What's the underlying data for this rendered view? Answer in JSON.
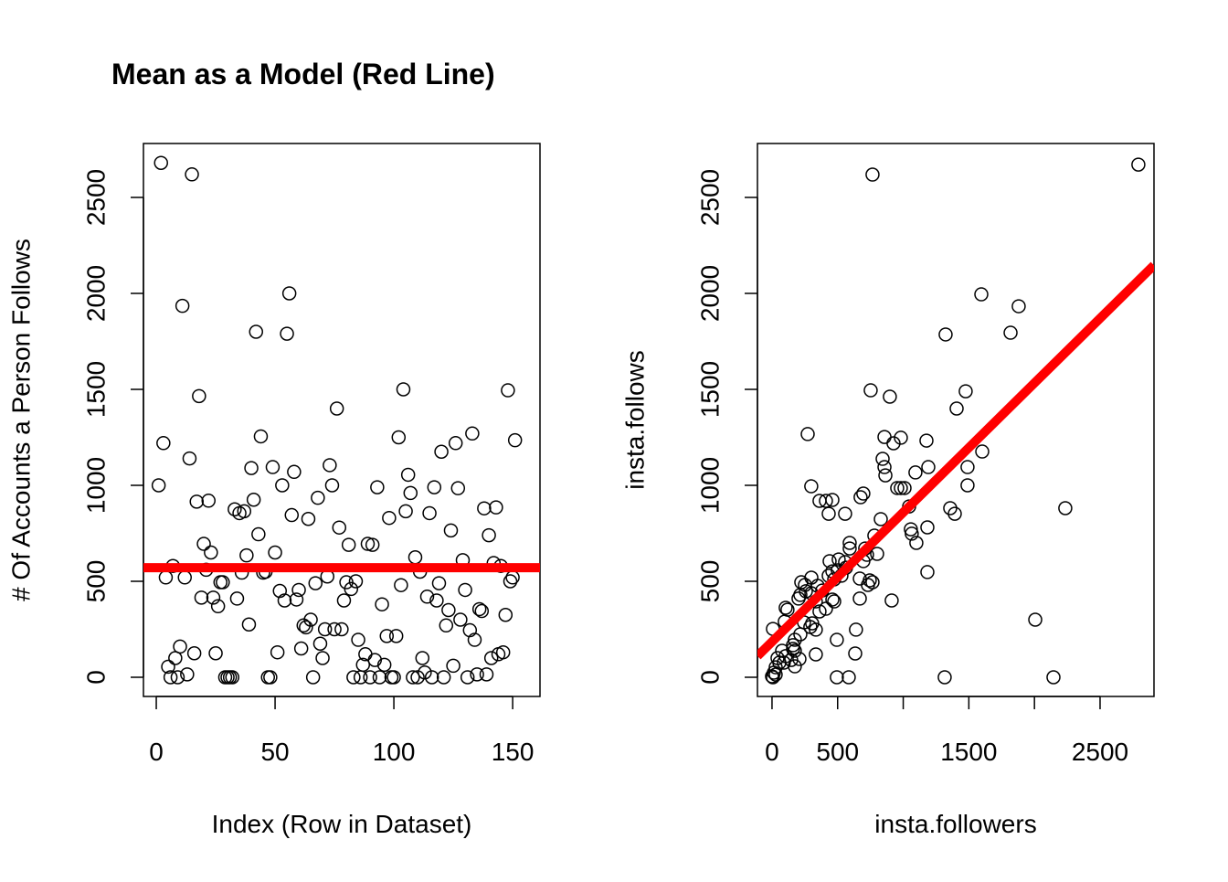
{
  "chart_data": [
    {
      "type": "scatter",
      "title": "Mean as a Model (Red Line)",
      "xlabel": "Index (Row in Dataset)",
      "ylabel": "# Of Accounts a Person Follows",
      "xlim": [
        -5.4,
        161.5
      ],
      "xticks": [
        0,
        50,
        100,
        150
      ],
      "ylim": [
        -100,
        2781
      ],
      "yticks": [
        0,
        500,
        1000,
        1500,
        2000,
        2500
      ],
      "color": "#000000",
      "values": [
        1000,
        2680,
        1220,
        520,
        55,
        0,
        580,
        100,
        0,
        160,
        1935,
        520,
        15,
        1140,
        2620,
        125,
        915,
        1465,
        415,
        695,
        560,
        920,
        650,
        415,
        125,
        370,
        495,
        495,
        0,
        0,
        0,
        0,
        875,
        410,
        855,
        545,
        865,
        635,
        275,
        1090,
        925,
        1800,
        745,
        1255,
        545,
        550,
        0,
        0,
        1095,
        650,
        130,
        450,
        1000,
        400,
        1790,
        2000,
        845,
        1070,
        405,
        455,
        150,
        270,
        260,
        825,
        300,
        0,
        490,
        935,
        175,
        100,
        250,
        525,
        1105,
        1000,
        250,
        1400,
        780,
        250,
        400,
        495,
        690,
        460,
        0,
        500,
        195,
        0,
        65,
        120,
        695,
        0,
        690,
        90,
        990,
        0,
        380,
        65,
        215,
        830,
        0,
        0,
        215,
        1250,
        480,
        1500,
        865,
        1055,
        960,
        0,
        625,
        0,
        550,
        100,
        25,
        420,
        855,
        0,
        990,
        400,
        490,
        1175,
        0,
        270,
        350,
        765,
        60,
        1220,
        985,
        300,
        610,
        455,
        0,
        245,
        1270,
        195,
        15,
        355,
        345,
        880,
        15,
        740,
        100,
        595,
        885,
        120,
        580,
        130,
        325,
        1495,
        500,
        520,
        1235
      ],
      "mean_line": {
        "value": 571,
        "color": "#ff0000"
      }
    },
    {
      "type": "scatter",
      "xlabel": "insta.followers",
      "ylabel": "insta.follows",
      "xlim": [
        -111,
        2911
      ],
      "xticks": [
        0,
        500,
        {
          "value": 1000,
          "label": null
        },
        1500,
        {
          "value": 2000,
          "label": null
        },
        2500
      ],
      "ylim": [
        -100,
        2781
      ],
      "yticks": [
        0,
        500,
        1000,
        1500,
        2000,
        2500
      ],
      "color": "#000000",
      "x": [
        2792,
        766,
        1595,
        1880,
        1323,
        1818,
        1476,
        752,
        1407,
        898,
        272,
        1177,
        1602,
        857,
        982,
        926,
        843,
        857,
        1191,
        1490,
        1093,
        864,
        299,
        954,
        982,
        1010,
        1490,
        696,
        675,
        460,
        362,
        411,
        1045,
        1358,
        2235,
        432,
        557,
        1393,
        829,
        1058,
        1184,
        1065,
        780,
        1100,
        592,
        710,
        592,
        801,
        724,
        508,
        439,
        696,
        557,
        564,
        501,
        460,
        1184,
        432,
        529,
        300,
        669,
        474,
        745,
        766,
        731,
        223,
        251,
        348,
        383,
        258,
        300,
        216,
        202,
        460,
        474,
        912,
        334,
        669,
        104,
        118,
        411,
        362,
        97,
        2006,
        244,
        306,
        292,
        7,
        334,
        640,
        216,
        174,
        494,
        160,
        160,
        77,
        334,
        634,
        209,
        42,
        90,
        28,
        174,
        14,
        0,
        7,
        28,
        494,
        585,
        1316,
        2145,
        104,
        146,
        174,
        56
      ],
      "values": [
        2671,
        2619,
        1995,
        1933,
        1786,
        1795,
        1490,
        1495,
        1400,
        1462,
        1267,
        1233,
        1176,
        1252,
        1248,
        1219,
        1138,
        1095,
        1095,
        1095,
        1067,
        1052,
        995,
        986,
        986,
        986,
        1000,
        957,
        938,
        924,
        919,
        919,
        890,
        881,
        881,
        852,
        852,
        852,
        824,
        771,
        781,
        748,
        738,
        700,
        700,
        671,
        671,
        643,
        638,
        614,
        605,
        605,
        600,
        571,
        557,
        552,
        548,
        529,
        529,
        519,
        514,
        510,
        505,
        495,
        481,
        495,
        481,
        476,
        452,
        448,
        438,
        429,
        410,
        405,
        395,
        400,
        395,
        410,
        362,
        352,
        357,
        343,
        290,
        300,
        286,
        281,
        262,
        252,
        248,
        248,
        224,
        195,
        195,
        167,
        148,
        138,
        119,
        124,
        95,
        100,
        76,
        52,
        57,
        24,
        5,
        0,
        14,
        0,
        0,
        0,
        0,
        110,
        90,
        138,
        76
      ],
      "fit_line": {
        "intercept": 185,
        "slope": 0.674,
        "color": "#ff0000"
      }
    }
  ]
}
